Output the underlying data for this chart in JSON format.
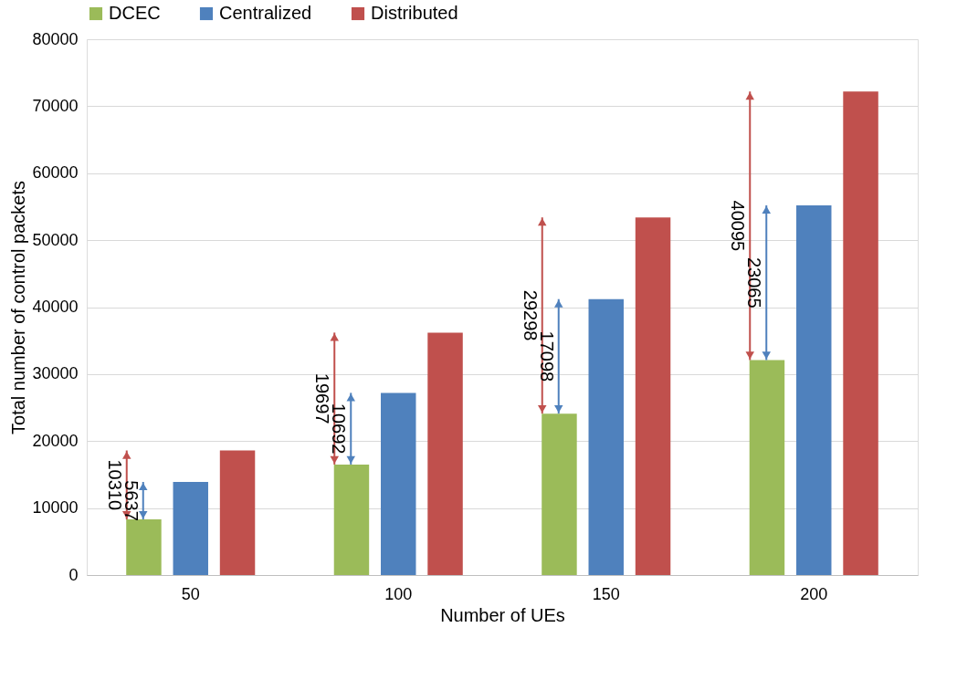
{
  "chart_data": {
    "type": "bar",
    "xlabel": "Number of UEs",
    "ylabel": "Total number of control packets",
    "categories": [
      "50",
      "100",
      "150",
      "200"
    ],
    "series": [
      {
        "name": "DCEC",
        "color": "#9bbb59",
        "values": [
          8300,
          16500,
          24100,
          32100
        ]
      },
      {
        "name": "Centralized",
        "color": "#4f81bd",
        "values": [
          13900,
          27200,
          41200,
          55200
        ]
      },
      {
        "name": "Distributed",
        "color": "#c0504d",
        "values": [
          18600,
          36200,
          53400,
          72200
        ]
      }
    ],
    "ylim": [
      0,
      80000
    ],
    "yticks": [
      0,
      10000,
      20000,
      30000,
      40000,
      50000,
      60000,
      70000,
      80000
    ],
    "grid": "y",
    "legend": "top",
    "annotations": [
      "10310",
      "5637",
      "19697",
      "10692",
      "29298",
      "17098",
      "40095",
      "23065"
    ]
  }
}
